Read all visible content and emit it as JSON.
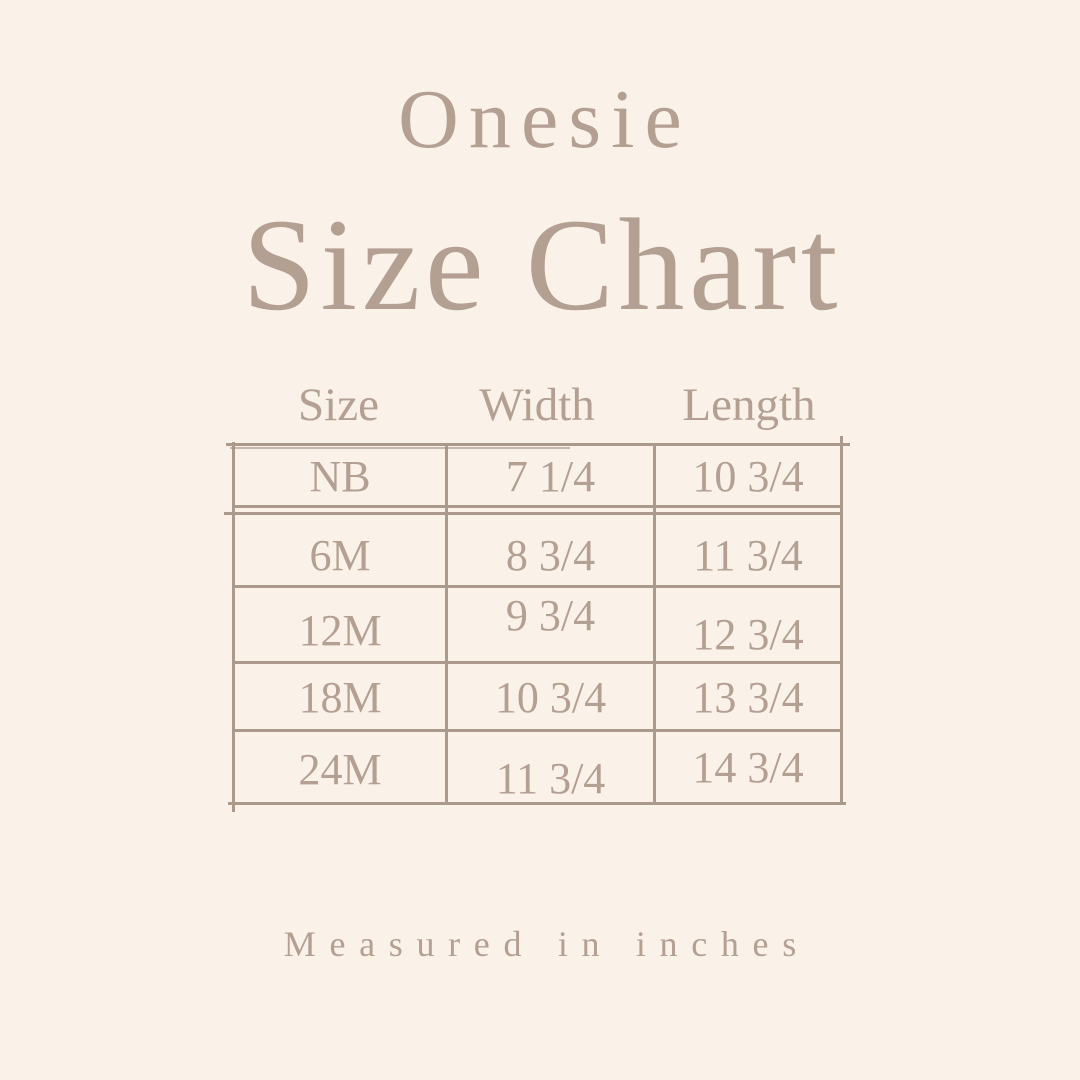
{
  "canvas": {
    "background": "#faf1e8",
    "ink": "#b3a093",
    "line": "#ab998b"
  },
  "title": {
    "product": "Onesie",
    "heading": "Size Chart"
  },
  "chart_data": {
    "type": "table",
    "title": "Size Chart",
    "subtitle": "Onesie",
    "columns": [
      "Size",
      "Width",
      "Length"
    ],
    "rows": [
      [
        "NB",
        "7 1/4",
        "10 3/4"
      ],
      [
        "6M",
        "8 3/4",
        "11 3/4"
      ],
      [
        "12M",
        "9 3/4",
        "12 3/4"
      ],
      [
        "18M",
        "10 3/4",
        "13 3/4"
      ],
      [
        "24M",
        "11 3/4",
        "14 3/4"
      ]
    ],
    "note": "Measured in inches",
    "units": "inches"
  }
}
